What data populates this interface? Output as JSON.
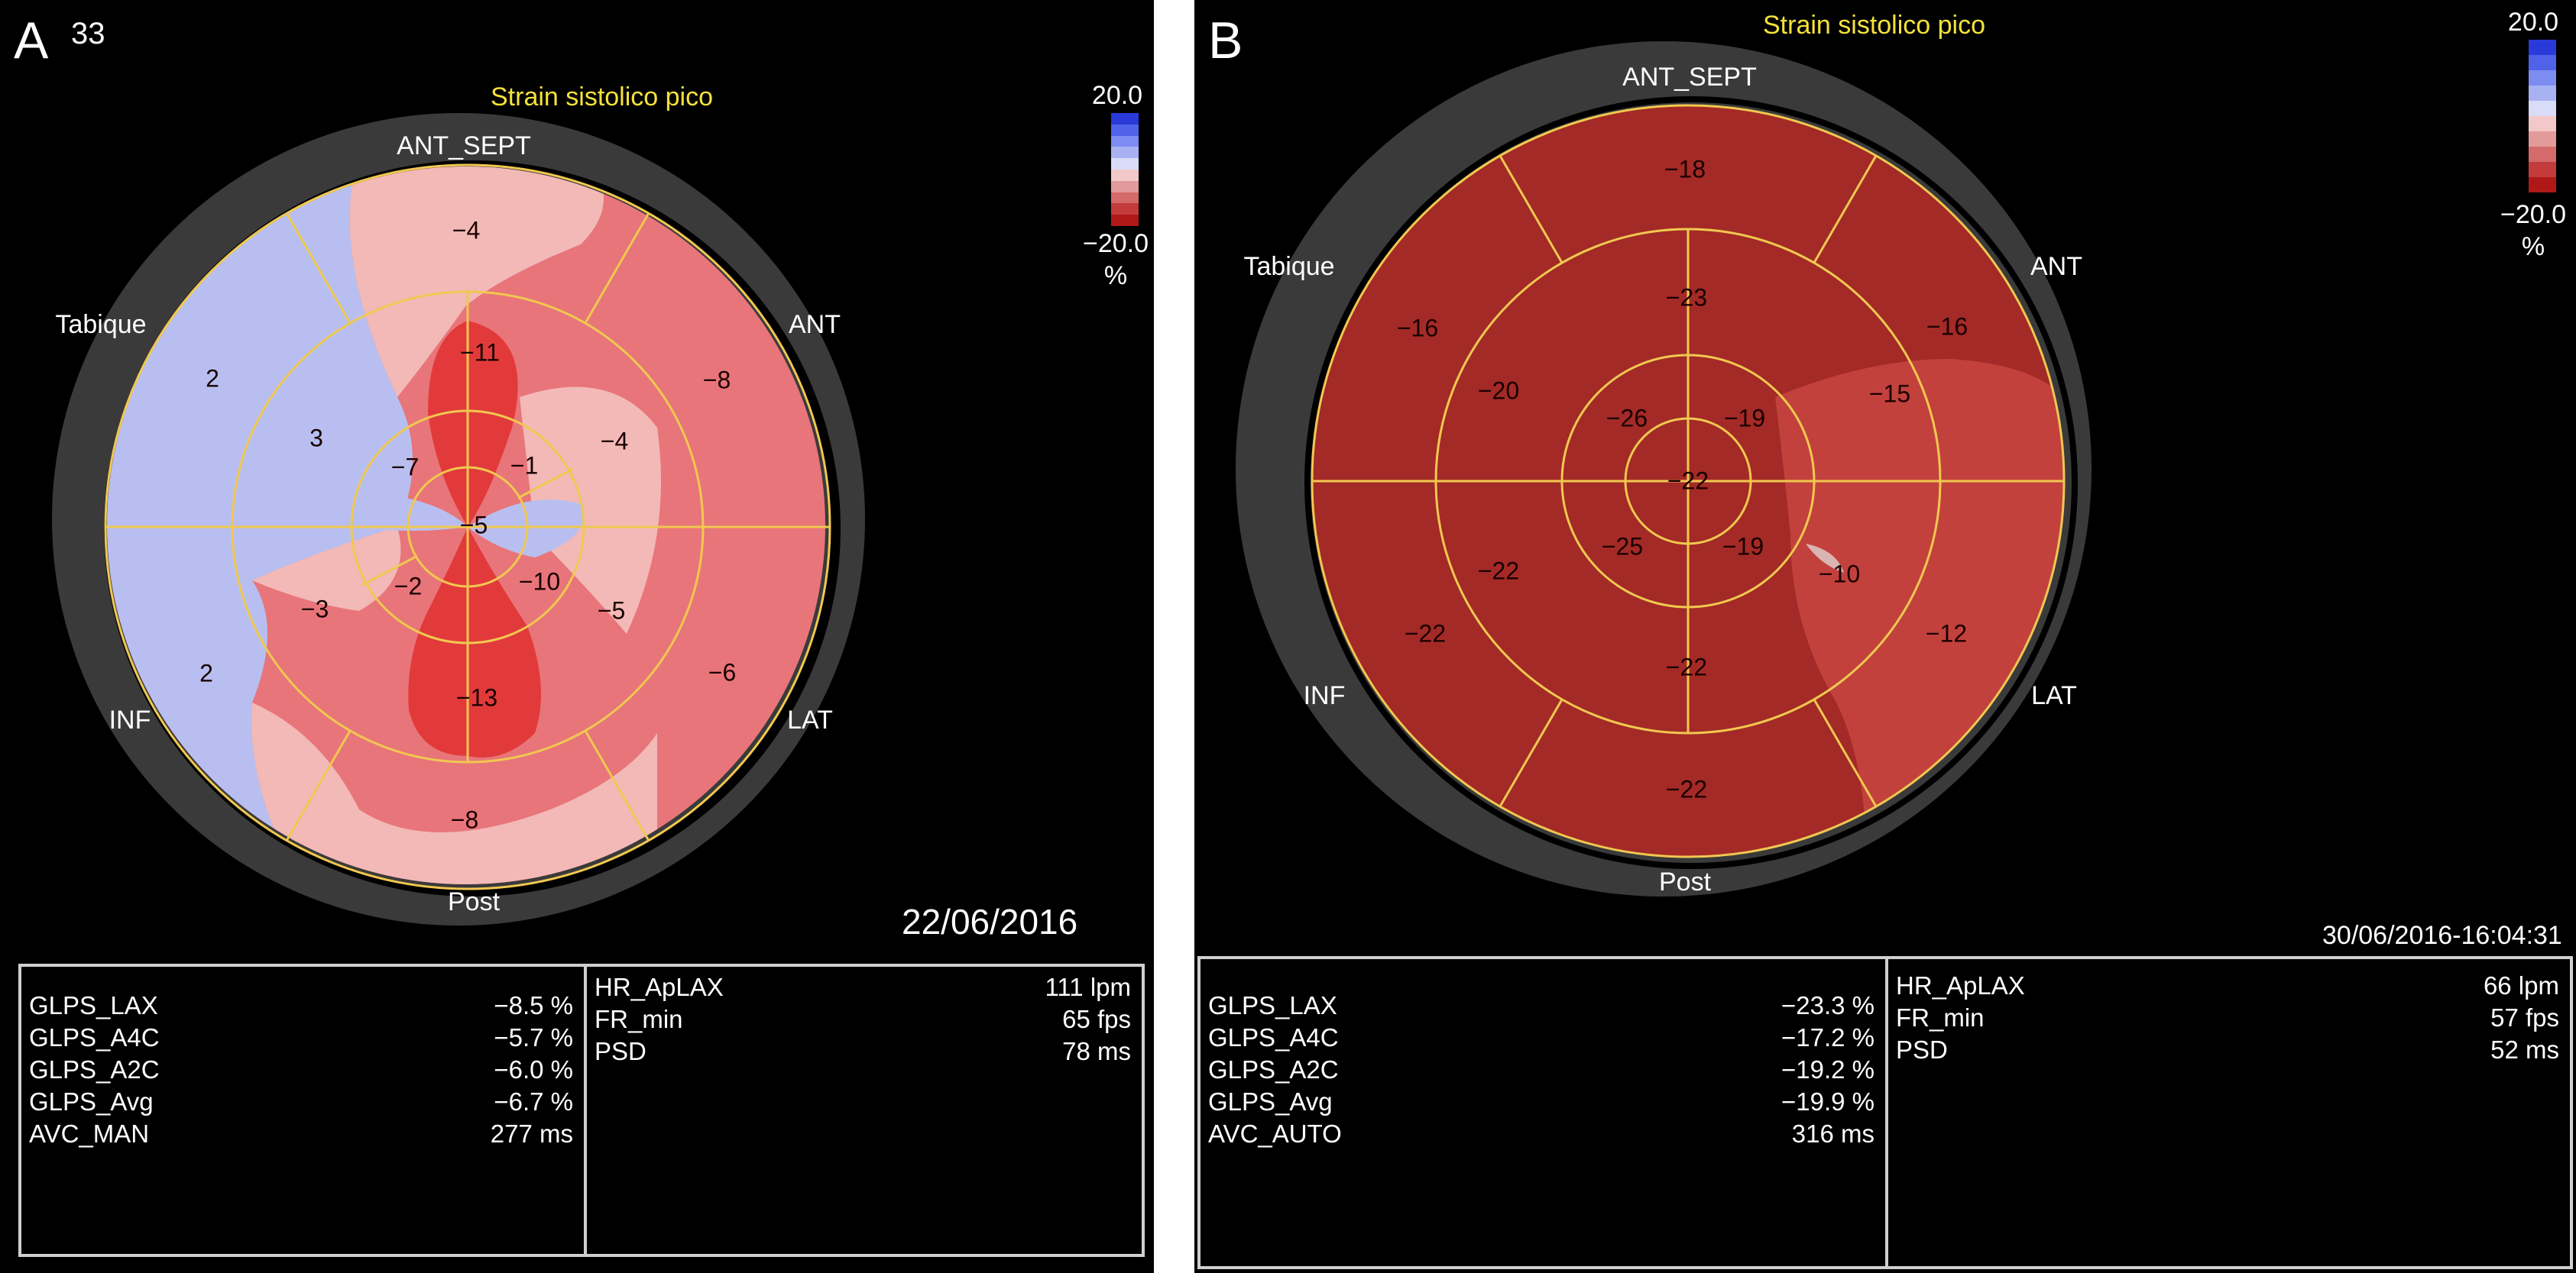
{
  "panel_a": {
    "letter": "A",
    "frame": "33",
    "title": "Strain sistolico pico",
    "labels": {
      "ant_sept": "ANT_SEPT",
      "tabique": "Tabique",
      "ant": "ANT",
      "inf": "INF",
      "lat": "LAT",
      "post": "Post"
    },
    "segments": [
      {
        "value": "−4"
      },
      {
        "value": "−8"
      },
      {
        "value": "−6"
      },
      {
        "value": "−8"
      },
      {
        "value": "2"
      },
      {
        "value": "2"
      },
      {
        "value": "−11"
      },
      {
        "value": "−4"
      },
      {
        "value": "−5"
      },
      {
        "value": "−13"
      },
      {
        "value": "−3"
      },
      {
        "value": "3"
      },
      {
        "value": "−1"
      },
      {
        "value": "−10"
      },
      {
        "value": "−2"
      },
      {
        "value": "−7"
      },
      {
        "value": "−5"
      }
    ],
    "scale": {
      "max": "20.0",
      "min": "−20.0",
      "unit": "%"
    },
    "date": "22/06/2016",
    "left_box": [
      {
        "key": "GLPS_LAX",
        "value": "−8.5 %"
      },
      {
        "key": "GLPS_A4C",
        "value": "−5.7 %"
      },
      {
        "key": "GLPS_A2C",
        "value": "−6.0 %"
      },
      {
        "key": "GLPS_Avg",
        "value": "−6.7 %"
      },
      {
        "key": "AVC_MAN",
        "value": "277 ms"
      }
    ],
    "right_box": [
      {
        "key": "HR_ApLAX",
        "value": "111 lpm"
      },
      {
        "key": "FR_min",
        "value": "65 fps"
      },
      {
        "key": "PSD",
        "value": "78 ms"
      }
    ]
  },
  "panel_b": {
    "letter": "B",
    "title": "Strain sistolico pico",
    "labels": {
      "ant_sept": "ANT_SEPT",
      "tabique": "Tabique",
      "ant": "ANT",
      "inf": "INF",
      "lat": "LAT",
      "post": "Post"
    },
    "segments": [
      {
        "value": "−18"
      },
      {
        "value": "−16"
      },
      {
        "value": "−12"
      },
      {
        "value": "−22"
      },
      {
        "value": "−22"
      },
      {
        "value": "−16"
      },
      {
        "value": "−23"
      },
      {
        "value": "−15"
      },
      {
        "value": "−10"
      },
      {
        "value": "−22"
      },
      {
        "value": "−22"
      },
      {
        "value": "−20"
      },
      {
        "value": "−19"
      },
      {
        "value": "−19"
      },
      {
        "value": "−25"
      },
      {
        "value": "−26"
      },
      {
        "value": "−22"
      }
    ],
    "scale": {
      "max": "20.0",
      "min": "−20.0",
      "unit": "%"
    },
    "date": "30/06/2016-16:04:31",
    "left_box": [
      {
        "key": "GLPS_LAX",
        "value": "−23.3 %"
      },
      {
        "key": "GLPS_A4C",
        "value": "−17.2 %"
      },
      {
        "key": "GLPS_A2C",
        "value": "−19.2 %"
      },
      {
        "key": "GLPS_Avg",
        "value": "−19.9 %"
      },
      {
        "key": "AVC_AUTO",
        "value": "316 ms"
      }
    ],
    "right_box": [
      {
        "key": "HR_ApLAX",
        "value": "66 lpm"
      },
      {
        "key": "FR_min",
        "value": "57 fps"
      },
      {
        "key": "PSD",
        "value": "52 ms"
      }
    ]
  },
  "colors": {
    "background": "#000000",
    "ring": "#3a3a3a",
    "grid_lines": "#f0c850",
    "title": "#f5e23a",
    "strain_positive": "#b8bff0",
    "strain_negative": "#e8757a",
    "strain_normal": "#a32a26",
    "scale_stops": [
      "#2a3ad8",
      "#4f62e8",
      "#7d8cf0",
      "#a8b2f3",
      "#d8dcf7",
      "#f2c8c8",
      "#e39a9a",
      "#d46a6a",
      "#c43b3b",
      "#b01818"
    ]
  }
}
